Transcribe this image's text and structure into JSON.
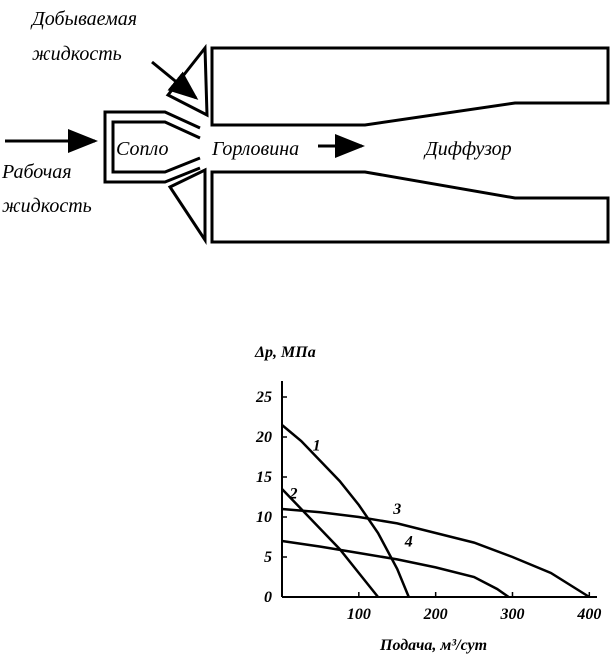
{
  "diagram": {
    "produced_liquid": [
      "Добываемая",
      "жидкость"
    ],
    "working_liquid": [
      "Рабочая",
      "жидкость"
    ],
    "nozzle": "Сопло",
    "throat": "Горловина",
    "diffuser": "Диффузор"
  },
  "chart_data": {
    "type": "line",
    "y_label": "Δp, МПа",
    "x_label": "Подача, м³/сут",
    "xlim": [
      0,
      410
    ],
    "ylim": [
      0,
      27
    ],
    "xticks": [
      100,
      200,
      300,
      400
    ],
    "yticks": [
      0,
      5,
      10,
      15,
      20,
      25
    ],
    "color": "#000000",
    "series": [
      {
        "name": "1",
        "x": [
          0,
          25,
          50,
          75,
          100,
          125,
          150,
          165
        ],
        "values": [
          21.5,
          19.5,
          17,
          14.5,
          11.5,
          8,
          3.5,
          0
        ]
      },
      {
        "name": "2",
        "x": [
          0,
          25,
          50,
          75,
          100,
          125
        ],
        "values": [
          13.5,
          11,
          8.5,
          6,
          3,
          0
        ]
      },
      {
        "name": "3",
        "x": [
          0,
          50,
          100,
          150,
          200,
          250,
          300,
          350,
          400
        ],
        "values": [
          11,
          10.6,
          10,
          9.2,
          8,
          6.8,
          5,
          3,
          0
        ]
      },
      {
        "name": "4",
        "x": [
          0,
          50,
          100,
          150,
          200,
          250,
          280,
          295
        ],
        "values": [
          7,
          6.3,
          5.5,
          4.7,
          3.7,
          2.5,
          1,
          0
        ]
      }
    ]
  }
}
